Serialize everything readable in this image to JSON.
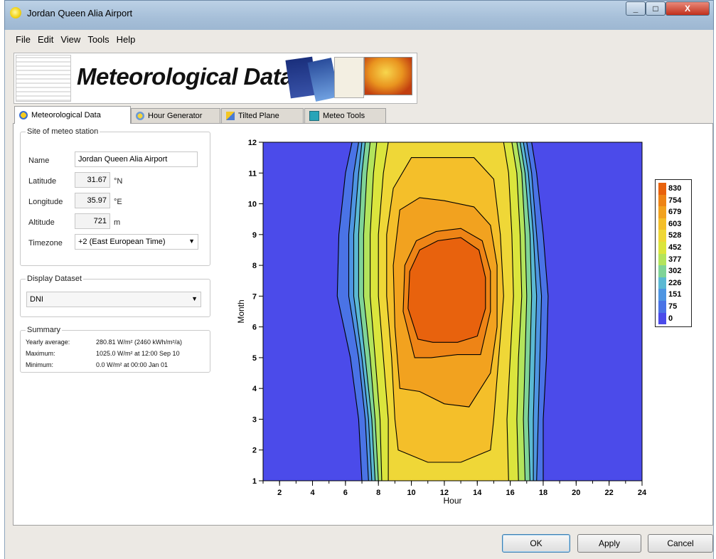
{
  "window": {
    "title": "Jordan Queen Alia Airport",
    "controls": [
      "_",
      "□",
      "X"
    ]
  },
  "menu": [
    "File",
    "Edit",
    "View",
    "Tools",
    "Help"
  ],
  "banner": {
    "title": "Meteorological Data"
  },
  "tabs": [
    {
      "label": "Meteorological Data",
      "active": true
    },
    {
      "label": "Hour Generator",
      "active": false
    },
    {
      "label": "Tilted Plane",
      "active": false
    },
    {
      "label": "Meteo Tools",
      "active": false
    }
  ],
  "site": {
    "group_label": "Site of meteo station",
    "name_label": "Name",
    "name_value": "Jordan Queen Alia Airport",
    "latitude_label": "Latitude",
    "latitude_value": "31.67",
    "latitude_unit": "°N",
    "longitude_label": "Longitude",
    "longitude_value": "35.97",
    "longitude_unit": "°E",
    "altitude_label": "Altitude",
    "altitude_value": "721",
    "altitude_unit": "m",
    "timezone_label": "Timezone",
    "timezone_value": "+2 (East European Time)"
  },
  "display": {
    "group_label": "Display Dataset",
    "selected": "DNI"
  },
  "summary": {
    "group_label": "Summary",
    "rows": [
      {
        "label": "Yearly average:",
        "value": "280.81 W/m² (2460 kWh/m²/a)"
      },
      {
        "label": "Maximum:",
        "value": "1025.0 W/m² at 12:00 Sep 10"
      },
      {
        "label": "Minimum:",
        "value": "0.0 W/m² at 00:00 Jan 01"
      }
    ]
  },
  "buttons": {
    "ok": "OK",
    "apply": "Apply",
    "cancel": "Cancel"
  },
  "chart_data": {
    "type": "heatmap",
    "subtype": "filled-contour",
    "xlabel": "Hour",
    "ylabel": "Month",
    "xlim": [
      1,
      24
    ],
    "ylim": [
      1,
      12
    ],
    "x_ticks": [
      2,
      4,
      6,
      8,
      10,
      12,
      14,
      16,
      18,
      20,
      22,
      24
    ],
    "y_ticks": [
      1,
      2,
      3,
      4,
      5,
      6,
      7,
      8,
      9,
      10,
      11,
      12
    ],
    "legend_levels": [
      830,
      754,
      679,
      603,
      528,
      452,
      377,
      302,
      226,
      151,
      75,
      0
    ],
    "legend_colors": [
      "#e8620d",
      "#ee8416",
      "#f2a21f",
      "#f4bf2a",
      "#efd737",
      "#dbe53d",
      "#b3e45c",
      "#7fd497",
      "#5bb9d3",
      "#4e95e2",
      "#4a73e6",
      "#4b4bea"
    ],
    "legend_position": "right",
    "colorscale_note": "0 blue to 830 orange",
    "contours": [
      {
        "level": 0,
        "points": [
          [
            7.0,
            1
          ],
          [
            6.8,
            3
          ],
          [
            6.3,
            5
          ],
          [
            5.5,
            7
          ],
          [
            5.6,
            9
          ],
          [
            6.0,
            11
          ],
          [
            6.4,
            12
          ],
          [
            17.3,
            12
          ],
          [
            17.6,
            11
          ],
          [
            18.0,
            9
          ],
          [
            18.3,
            7
          ],
          [
            18.2,
            5
          ],
          [
            18.0,
            3
          ],
          [
            18.0,
            1
          ]
        ]
      },
      {
        "level": 75,
        "points": [
          [
            7.4,
            1
          ],
          [
            7.2,
            3
          ],
          [
            6.8,
            5
          ],
          [
            6.2,
            7
          ],
          [
            6.2,
            9
          ],
          [
            6.5,
            11
          ],
          [
            6.8,
            12
          ],
          [
            17.0,
            12
          ],
          [
            17.3,
            11
          ],
          [
            17.6,
            9
          ],
          [
            17.9,
            7
          ],
          [
            17.8,
            5
          ],
          [
            17.7,
            3
          ],
          [
            17.6,
            1
          ]
        ]
      },
      {
        "level": 151,
        "points": [
          [
            7.6,
            1
          ],
          [
            7.4,
            3
          ],
          [
            7.0,
            5
          ],
          [
            6.5,
            7
          ],
          [
            6.5,
            9
          ],
          [
            6.8,
            11
          ],
          [
            7.0,
            12
          ],
          [
            16.8,
            12
          ],
          [
            17.1,
            11
          ],
          [
            17.4,
            9
          ],
          [
            17.6,
            7
          ],
          [
            17.5,
            5
          ],
          [
            17.4,
            3
          ],
          [
            17.4,
            1
          ]
        ]
      },
      {
        "level": 226,
        "points": [
          [
            7.8,
            1
          ],
          [
            7.6,
            3
          ],
          [
            7.2,
            5
          ],
          [
            6.8,
            7
          ],
          [
            6.8,
            9
          ],
          [
            7.0,
            11
          ],
          [
            7.2,
            12
          ],
          [
            16.6,
            12
          ],
          [
            16.9,
            11
          ],
          [
            17.2,
            9
          ],
          [
            17.3,
            7
          ],
          [
            17.2,
            5
          ],
          [
            17.1,
            3
          ],
          [
            17.2,
            1
          ]
        ]
      },
      {
        "level": 302,
        "points": [
          [
            8.0,
            1
          ],
          [
            7.8,
            3
          ],
          [
            7.5,
            5
          ],
          [
            7.1,
            7
          ],
          [
            7.1,
            9
          ],
          [
            7.3,
            11
          ],
          [
            7.5,
            12
          ],
          [
            16.4,
            12
          ],
          [
            16.7,
            11
          ],
          [
            16.9,
            9
          ],
          [
            17.0,
            7
          ],
          [
            16.9,
            5
          ],
          [
            16.8,
            3
          ],
          [
            16.9,
            1
          ]
        ]
      },
      {
        "level": 377,
        "points": [
          [
            8.2,
            1
          ],
          [
            8.1,
            3
          ],
          [
            7.8,
            5
          ],
          [
            7.5,
            7
          ],
          [
            7.5,
            9
          ],
          [
            7.7,
            11
          ],
          [
            7.9,
            12
          ],
          [
            16.1,
            12
          ],
          [
            16.4,
            11
          ],
          [
            16.6,
            9
          ],
          [
            16.7,
            7
          ],
          [
            16.5,
            5
          ],
          [
            16.4,
            3
          ],
          [
            16.5,
            1
          ]
        ]
      },
      {
        "level": 452,
        "points": [
          [
            8.6,
            1
          ],
          [
            8.6,
            3
          ],
          [
            8.3,
            5
          ],
          [
            8.0,
            7
          ],
          [
            8.0,
            9
          ],
          [
            8.3,
            11
          ],
          [
            8.6,
            12
          ],
          [
            15.6,
            12
          ],
          [
            15.9,
            11
          ],
          [
            16.1,
            9
          ],
          [
            16.2,
            7
          ],
          [
            16.0,
            5
          ],
          [
            15.8,
            3
          ],
          [
            15.9,
            1
          ]
        ]
      },
      {
        "level": 528,
        "points": [
          [
            9.2,
            2
          ],
          [
            9.0,
            3
          ],
          [
            8.8,
            5
          ],
          [
            8.5,
            7
          ],
          [
            8.5,
            9
          ],
          [
            8.9,
            10.5
          ],
          [
            10.0,
            11.5
          ],
          [
            13.8,
            11.5
          ],
          [
            15.0,
            10.8
          ],
          [
            15.4,
            9
          ],
          [
            15.6,
            7
          ],
          [
            15.3,
            5
          ],
          [
            15.0,
            3
          ],
          [
            14.8,
            2
          ],
          [
            13.0,
            1.6
          ],
          [
            11.0,
            1.6
          ]
        ]
      },
      {
        "level": 603,
        "points": [
          [
            9.3,
            4
          ],
          [
            9.0,
            6
          ],
          [
            8.9,
            8
          ],
          [
            9.3,
            9.8
          ],
          [
            10.5,
            10.2
          ],
          [
            12.0,
            10.1
          ],
          [
            13.8,
            9.9
          ],
          [
            14.8,
            9.3
          ],
          [
            15.2,
            8
          ],
          [
            15.2,
            6
          ],
          [
            14.8,
            4.5
          ],
          [
            13.5,
            3.4
          ],
          [
            12.0,
            3.5
          ],
          [
            10.5,
            3.9
          ]
        ]
      },
      {
        "level": 679,
        "points": [
          [
            10.2,
            5.0
          ],
          [
            9.5,
            6.5
          ],
          [
            9.6,
            8
          ],
          [
            10.3,
            8.8
          ],
          [
            11.5,
            9.1
          ],
          [
            13.0,
            9.2
          ],
          [
            14.3,
            8.8
          ],
          [
            14.8,
            7.8
          ],
          [
            14.8,
            6.5
          ],
          [
            14.2,
            5.1
          ],
          [
            12.8,
            5.1
          ],
          [
            11.2,
            5.0
          ]
        ]
      },
      {
        "level": 754,
        "points": [
          [
            10.4,
            5.6
          ],
          [
            9.8,
            6.6
          ],
          [
            9.9,
            7.8
          ],
          [
            10.5,
            8.5
          ],
          [
            11.6,
            8.8
          ],
          [
            13.0,
            8.9
          ],
          [
            14.1,
            8.5
          ],
          [
            14.5,
            7.6
          ],
          [
            14.5,
            6.6
          ],
          [
            14.0,
            5.7
          ],
          [
            12.8,
            5.5
          ],
          [
            11.3,
            5.5
          ]
        ]
      }
    ]
  }
}
